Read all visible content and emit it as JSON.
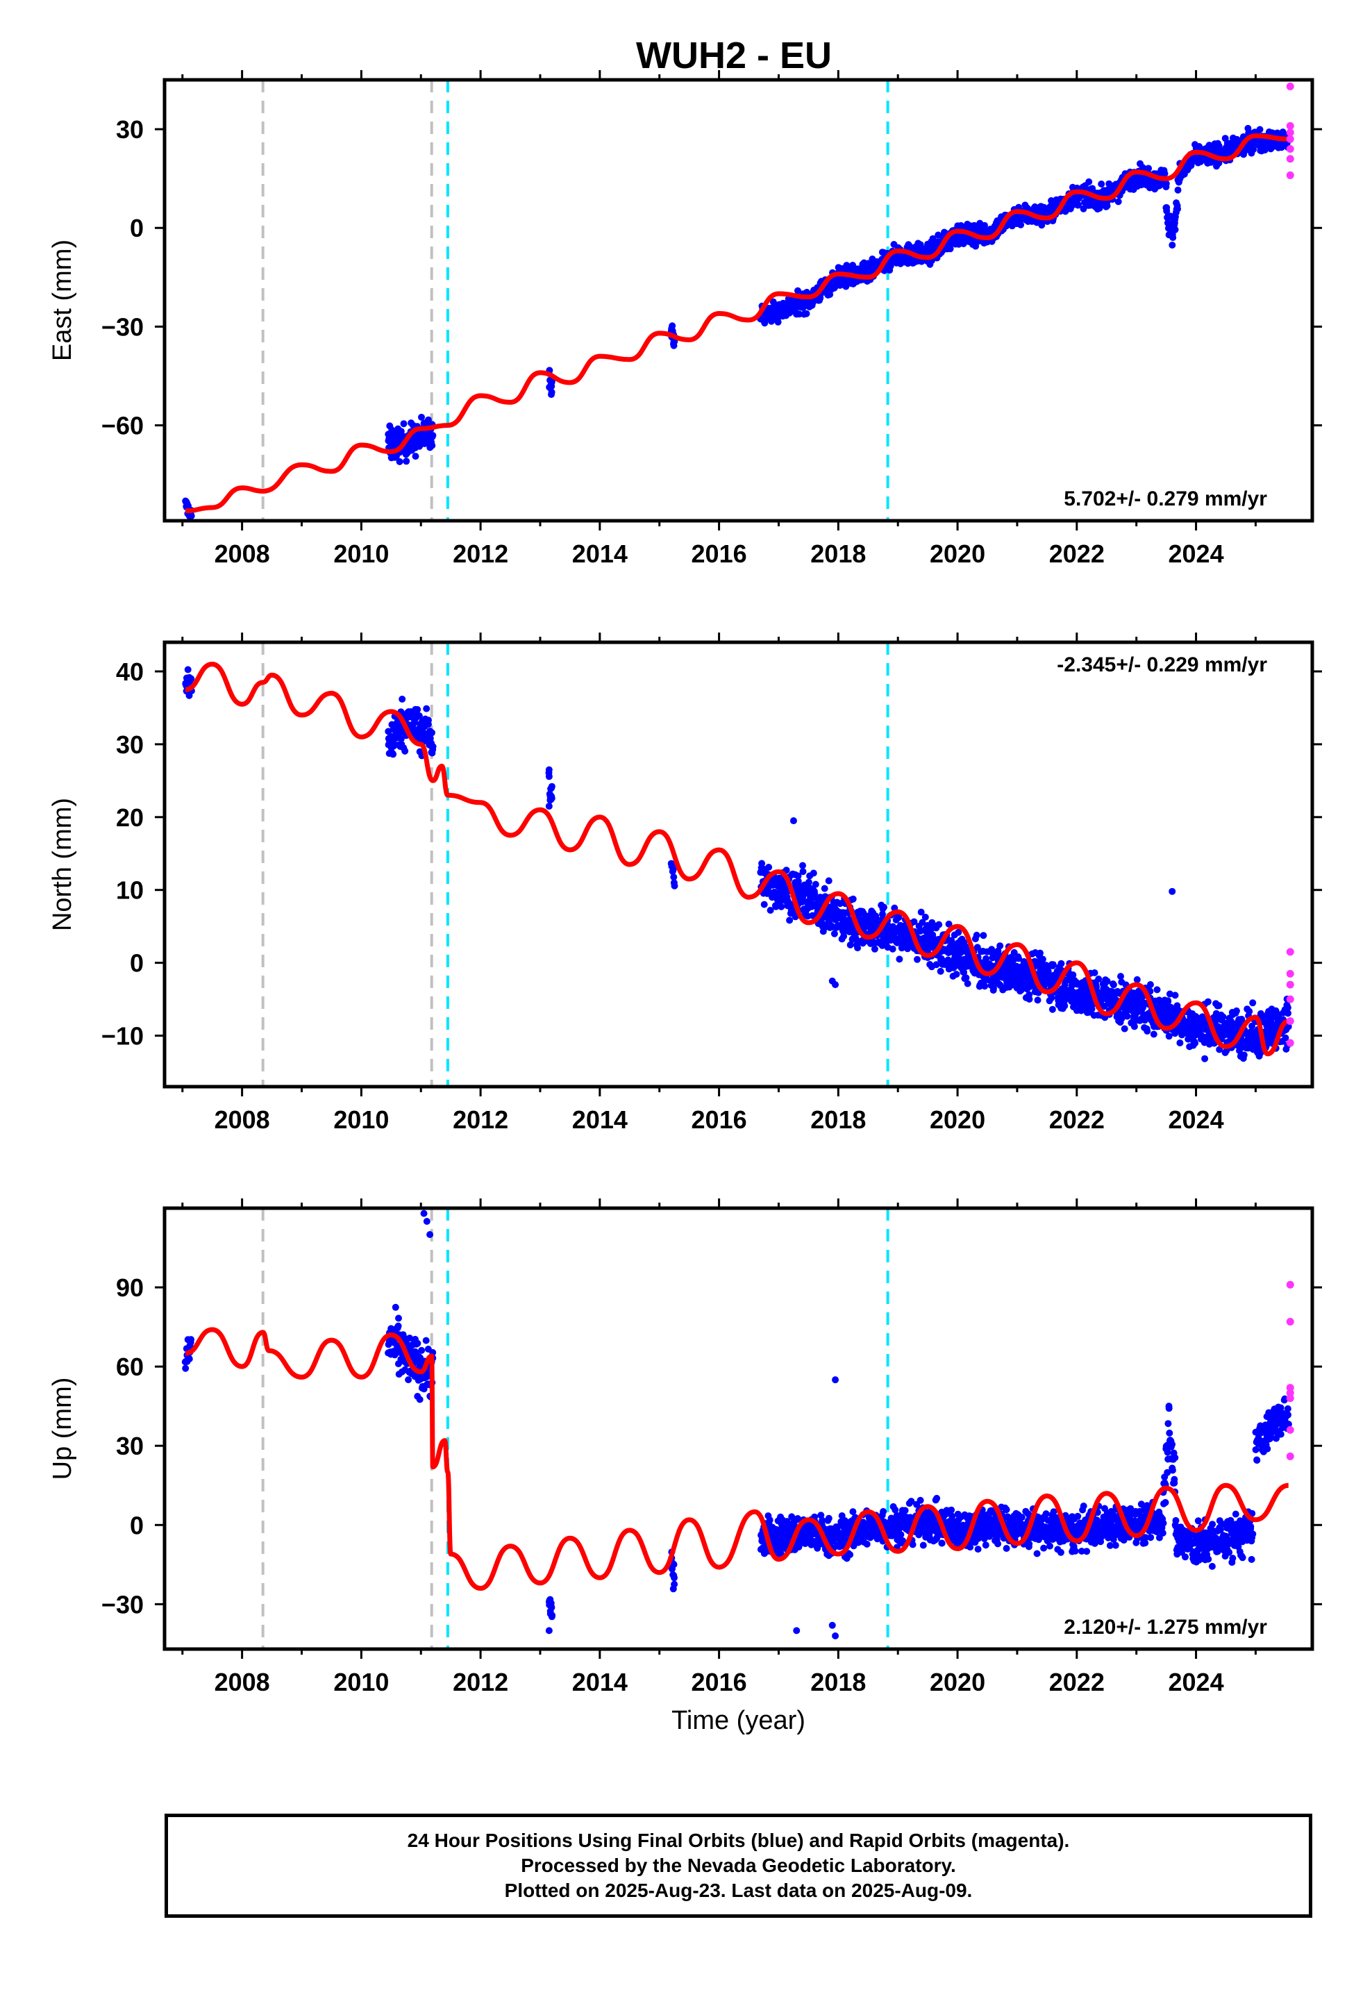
{
  "title": "WUH2 - EU",
  "colors": {
    "final_orbits": "#0000ff",
    "rapid_orbits": "#ff33ff",
    "model_fit": "#ff0000",
    "gray_offset_line": "#c0c0c0",
    "cyan_offset_line": "#00e5ff",
    "axes": "#000000"
  },
  "footer": {
    "lines": [
      "24 Hour Positions Using Final Orbits (blue) and Rapid Orbits (magenta).",
      "Processed by the Nevada Geodetic Laboratory.",
      "Plotted on 2025-Aug-23. Last data on 2025-Aug-09."
    ]
  },
  "chart_data": [
    {
      "type": "scatter",
      "panel": "East",
      "ylabel": "East (mm)",
      "xlabel": "",
      "xlim": [
        2006.7,
        2025.95
      ],
      "ylim": [
        -89,
        45
      ],
      "xticks": [
        2008,
        2010,
        2012,
        2014,
        2016,
        2018,
        2020,
        2022,
        2024
      ],
      "xticklabels": [
        "2008",
        "2010",
        "2012",
        "2014",
        "2016",
        "2018",
        "2020",
        "2022",
        "2024"
      ],
      "yticks": [
        -60,
        -30,
        0,
        30
      ],
      "yticklabels": [
        "−60",
        "−30",
        "0",
        "30"
      ],
      "rate_annotation": "5.702+/- 0.279 mm/yr",
      "rate_position": "bottom-right",
      "gray_dashed_lines": [
        2008.35,
        2011.18
      ],
      "cyan_dashed_lines": [
        2011.45,
        2018.83
      ],
      "model": {
        "x": [
          2007.05,
          2007.5,
          2008.0,
          2008.35,
          2009.0,
          2009.5,
          2010.0,
          2010.5,
          2011.0,
          2011.45,
          2012.0,
          2012.5,
          2013.0,
          2013.5,
          2014.0,
          2014.5,
          2015.0,
          2015.5,
          2016.0,
          2016.5,
          2017.0,
          2017.5,
          2018.0,
          2018.5,
          2019.0,
          2019.5,
          2020.0,
          2020.5,
          2021.0,
          2021.5,
          2022.0,
          2022.5,
          2023.0,
          2023.5,
          2024.0,
          2024.5,
          2025.0,
          2025.55
        ],
        "y": [
          -86,
          -85,
          -79,
          -80,
          -72,
          -74,
          -66,
          -68,
          -61,
          -60,
          -51,
          -53,
          -44,
          -47,
          -39,
          -40,
          -32,
          -34,
          -26,
          -28,
          -20,
          -21,
          -14,
          -15,
          -7,
          -9,
          -1,
          -3,
          5,
          3,
          11,
          9,
          17,
          15,
          23,
          21,
          28,
          27
        ]
      },
      "final_orbit_segments": [
        {
          "x_range": [
            2007.05,
            2007.15
          ],
          "center": [
            [
              2007.05,
              -84
            ],
            [
              2007.15,
              -87
            ]
          ],
          "spread": 2
        },
        {
          "x_range": [
            2010.45,
            2011.2
          ],
          "center": [
            [
              2010.45,
              -66
            ],
            [
              2010.8,
              -65
            ],
            [
              2011.2,
              -62
            ]
          ],
          "spread": 5
        },
        {
          "x_range": [
            2013.15,
            2013.2
          ],
          "center": [
            [
              2013.15,
              -45
            ],
            [
              2013.2,
              -48
            ]
          ],
          "spread": 3
        },
        {
          "x_range": [
            2015.2,
            2015.25
          ],
          "center": [
            [
              2015.2,
              -31
            ],
            [
              2015.25,
              -34
            ]
          ],
          "spread": 2
        },
        {
          "x_range": [
            2016.7,
            2023.5
          ],
          "center": [
            [
              2016.7,
              -27
            ],
            [
              2017.5,
              -22
            ],
            [
              2018.0,
              -15
            ],
            [
              2018.5,
              -14
            ],
            [
              2019.0,
              -8
            ],
            [
              2019.5,
              -8
            ],
            [
              2020.0,
              -2
            ],
            [
              2020.5,
              -2
            ],
            [
              2021.0,
              4
            ],
            [
              2021.5,
              4
            ],
            [
              2022.0,
              10
            ],
            [
              2022.5,
              9
            ],
            [
              2023.0,
              16
            ],
            [
              2023.5,
              15
            ]
          ],
          "spread": 3
        },
        {
          "x_range": [
            2023.5,
            2023.7
          ],
          "center": [
            [
              2023.5,
              5
            ],
            [
              2023.6,
              -2
            ],
            [
              2023.7,
              8
            ]
          ],
          "spread": 4
        },
        {
          "x_range": [
            2023.7,
            2025.55
          ],
          "center": [
            [
              2023.7,
              16
            ],
            [
              2024.0,
              22
            ],
            [
              2024.5,
              23
            ],
            [
              2025.0,
              27
            ],
            [
              2025.55,
              26
            ]
          ],
          "spread": 3
        }
      ],
      "rapid_orbit_points": [
        [
          2025.58,
          43
        ],
        [
          2025.58,
          31
        ],
        [
          2025.58,
          29
        ],
        [
          2025.58,
          27
        ],
        [
          2025.58,
          24
        ],
        [
          2025.58,
          21
        ],
        [
          2025.58,
          16
        ]
      ]
    },
    {
      "type": "scatter",
      "panel": "North",
      "ylabel": "North (mm)",
      "xlabel": "",
      "xlim": [
        2006.7,
        2025.95
      ],
      "ylim": [
        -17,
        44
      ],
      "xticks": [
        2008,
        2010,
        2012,
        2014,
        2016,
        2018,
        2020,
        2022,
        2024
      ],
      "xticklabels": [
        "2008",
        "2010",
        "2012",
        "2014",
        "2016",
        "2018",
        "2020",
        "2022",
        "2024"
      ],
      "yticks": [
        -10,
        0,
        10,
        20,
        30,
        40
      ],
      "yticklabels": [
        "−10",
        "0",
        "10",
        "20",
        "30",
        "40"
      ],
      "rate_annotation": "-2.345+/- 0.229 mm/yr",
      "rate_position": "top-right",
      "gray_dashed_lines": [
        2008.35,
        2011.18
      ],
      "cyan_dashed_lines": [
        2011.45,
        2018.83
      ],
      "model": {
        "x": [
          2007.05,
          2007.5,
          2008.0,
          2008.35,
          2008.5,
          2009.0,
          2009.5,
          2010.0,
          2010.5,
          2011.0,
          2011.2,
          2011.35,
          2011.45,
          2012.0,
          2012.5,
          2013.0,
          2013.5,
          2014.0,
          2014.5,
          2015.0,
          2015.5,
          2016.0,
          2016.5,
          2017.0,
          2017.5,
          2018.0,
          2018.5,
          2019.0,
          2019.5,
          2020.0,
          2020.5,
          2021.0,
          2021.5,
          2022.0,
          2022.5,
          2023.0,
          2023.5,
          2024.0,
          2024.5,
          2025.0,
          2025.2,
          2025.55
        ],
        "y": [
          37.5,
          41.0,
          35.5,
          38.5,
          39.5,
          34.0,
          37.0,
          31.0,
          34.5,
          30.0,
          25.0,
          27.0,
          23.0,
          22.0,
          17.5,
          21.0,
          15.5,
          20.0,
          13.5,
          18.0,
          11.5,
          15.5,
          9.0,
          12.5,
          5.5,
          9.5,
          3.5,
          7.0,
          1.0,
          5.0,
          -1.5,
          2.5,
          -4.0,
          0.0,
          -7.0,
          -3.0,
          -9.0,
          -5.5,
          -11.5,
          -7.5,
          -12.5,
          -8.0
        ]
      },
      "final_orbit_segments": [
        {
          "x_range": [
            2007.05,
            2007.15
          ],
          "center": [
            [
              2007.05,
              39
            ],
            [
              2007.15,
              38
            ]
          ],
          "spread": 2
        },
        {
          "x_range": [
            2010.45,
            2011.2
          ],
          "center": [
            [
              2010.45,
              30
            ],
            [
              2010.7,
              33
            ],
            [
              2011.2,
              31
            ]
          ],
          "spread": 3
        },
        {
          "x_range": [
            2013.15,
            2013.2
          ],
          "center": [
            [
              2013.15,
              25
            ],
            [
              2013.2,
              22
            ]
          ],
          "spread": 2
        },
        {
          "x_range": [
            2015.2,
            2015.25
          ],
          "center": [
            [
              2015.2,
              14
            ],
            [
              2015.25,
              12
            ]
          ],
          "spread": 1.5
        },
        {
          "x_range": [
            2016.7,
            2025.55
          ],
          "center": [
            [
              2016.7,
              11
            ],
            [
              2017.5,
              9
            ],
            [
              2018.0,
              6
            ],
            [
              2018.5,
              5
            ],
            [
              2019.0,
              4
            ],
            [
              2019.5,
              3
            ],
            [
              2020.0,
              1
            ],
            [
              2020.5,
              -1
            ],
            [
              2021.0,
              -1
            ],
            [
              2021.5,
              -2
            ],
            [
              2022.0,
              -4
            ],
            [
              2022.5,
              -5
            ],
            [
              2023.0,
              -6
            ],
            [
              2023.5,
              -7
            ],
            [
              2024.0,
              -9
            ],
            [
              2024.5,
              -9
            ],
            [
              2025.0,
              -10
            ],
            [
              2025.55,
              -8
            ]
          ],
          "spread": 3
        }
      ],
      "outlier_points": [
        [
          2017.25,
          19.5
        ],
        [
          2017.9,
          -2.5
        ],
        [
          2017.95,
          -3
        ],
        [
          2023.6,
          9.8
        ],
        [
          2013.15,
          26.5
        ],
        [
          2013.15,
          21.5
        ],
        [
          2018.1,
          8.5
        ]
      ],
      "rapid_orbit_points": [
        [
          2025.58,
          1.5
        ],
        [
          2025.58,
          -1.5
        ],
        [
          2025.58,
          -3
        ],
        [
          2025.58,
          -5
        ],
        [
          2025.58,
          -8
        ],
        [
          2025.58,
          -11
        ]
      ]
    },
    {
      "type": "scatter",
      "panel": "Up",
      "ylabel": "Up (mm)",
      "xlabel": "Time (year)",
      "xlim": [
        2006.7,
        2025.95
      ],
      "ylim": [
        -47,
        120
      ],
      "xticks": [
        2008,
        2010,
        2012,
        2014,
        2016,
        2018,
        2020,
        2022,
        2024
      ],
      "xticklabels": [
        "2008",
        "2010",
        "2012",
        "2014",
        "2016",
        "2018",
        "2020",
        "2022",
        "2024"
      ],
      "yticks": [
        -30,
        0,
        30,
        60,
        90
      ],
      "yticklabels": [
        "−30",
        "0",
        "30",
        "60",
        "90"
      ],
      "rate_annotation": "2.120+/- 1.275 mm/yr",
      "rate_position": "bottom-right",
      "gray_dashed_lines": [
        2008.35,
        2011.18
      ],
      "cyan_dashed_lines": [
        2011.45,
        2018.83
      ],
      "model": {
        "x": [
          2007.05,
          2007.5,
          2008.0,
          2008.35,
          2008.45,
          2009.0,
          2009.5,
          2010.0,
          2010.5,
          2011.0,
          2011.18,
          2011.2,
          2011.4,
          2011.45,
          2011.5,
          2012.0,
          2012.5,
          2013.0,
          2013.5,
          2014.0,
          2014.5,
          2015.0,
          2015.5,
          2016.0,
          2016.6,
          2017.0,
          2017.5,
          2018.0,
          2018.5,
          2019.0,
          2019.5,
          2020.0,
          2020.5,
          2021.0,
          2021.5,
          2022.0,
          2022.5,
          2023.0,
          2023.5,
          2024.0,
          2024.5,
          2025.0,
          2025.55
        ],
        "y": [
          65,
          74,
          60,
          73,
          66,
          56,
          70,
          56,
          72,
          58,
          64,
          22,
          32,
          20,
          -11,
          -24,
          -8,
          -22,
          -5,
          -20,
          -2,
          -18,
          2,
          -16,
          5,
          -13,
          2,
          -11,
          5,
          -10,
          7,
          -9,
          9,
          -7,
          11,
          -6,
          12,
          -4,
          14,
          -2,
          15,
          2,
          15
        ]
      },
      "final_orbit_segments": [
        {
          "x_range": [
            2007.05,
            2007.15
          ],
          "center": [
            [
              2007.05,
              62
            ],
            [
              2007.15,
              68
            ]
          ],
          "spread": 7
        },
        {
          "x_range": [
            2010.45,
            2011.2
          ],
          "center": [
            [
              2010.45,
              70
            ],
            [
              2010.8,
              62
            ],
            [
              2011.2,
              58
            ]
          ],
          "spread": 10
        },
        {
          "x_range": [
            2013.15,
            2013.2
          ],
          "center": [
            [
              2013.15,
              -30
            ],
            [
              2013.2,
              -33
            ]
          ],
          "spread": 5
        },
        {
          "x_range": [
            2015.2,
            2015.25
          ],
          "center": [
            [
              2015.2,
              -15
            ],
            [
              2015.25,
              -20
            ]
          ],
          "spread": 6
        },
        {
          "x_range": [
            2016.7,
            2023.45
          ],
          "center": [
            [
              2016.7,
              -5
            ],
            [
              2017.5,
              -3
            ],
            [
              2018.0,
              -5
            ],
            [
              2018.5,
              -1
            ],
            [
              2019.0,
              0
            ],
            [
              2019.5,
              1
            ],
            [
              2020.0,
              -2
            ],
            [
              2020.5,
              0
            ],
            [
              2021.0,
              -1
            ],
            [
              2021.5,
              -2
            ],
            [
              2022.0,
              -3
            ],
            [
              2022.5,
              0
            ],
            [
              2023.0,
              0
            ],
            [
              2023.45,
              2
            ]
          ],
          "spread": 7
        },
        {
          "x_range": [
            2023.45,
            2023.65
          ],
          "center": [
            [
              2023.45,
              10
            ],
            [
              2023.55,
              40
            ],
            [
              2023.65,
              15
            ]
          ],
          "spread": 10
        },
        {
          "x_range": [
            2023.65,
            2024.95
          ],
          "center": [
            [
              2023.65,
              -5
            ],
            [
              2024.0,
              -8
            ],
            [
              2024.5,
              -5
            ],
            [
              2024.95,
              -3
            ]
          ],
          "spread": 8
        },
        {
          "x_range": [
            2025.0,
            2025.55
          ],
          "center": [
            [
              2025.0,
              30
            ],
            [
              2025.3,
              38
            ],
            [
              2025.55,
              42
            ]
          ],
          "spread": 7
        }
      ],
      "outlier_points": [
        [
          2011.05,
          118
        ],
        [
          2011.1,
          115
        ],
        [
          2011.15,
          110
        ],
        [
          2017.95,
          55
        ],
        [
          2017.95,
          -42
        ],
        [
          2017.9,
          -38
        ],
        [
          2017.3,
          -40
        ],
        [
          2013.15,
          -40
        ]
      ],
      "rapid_orbit_points": [
        [
          2025.58,
          91
        ],
        [
          2025.58,
          77
        ],
        [
          2025.58,
          52
        ],
        [
          2025.58,
          50
        ],
        [
          2025.58,
          48
        ],
        [
          2025.58,
          36
        ],
        [
          2025.58,
          26
        ]
      ]
    }
  ]
}
